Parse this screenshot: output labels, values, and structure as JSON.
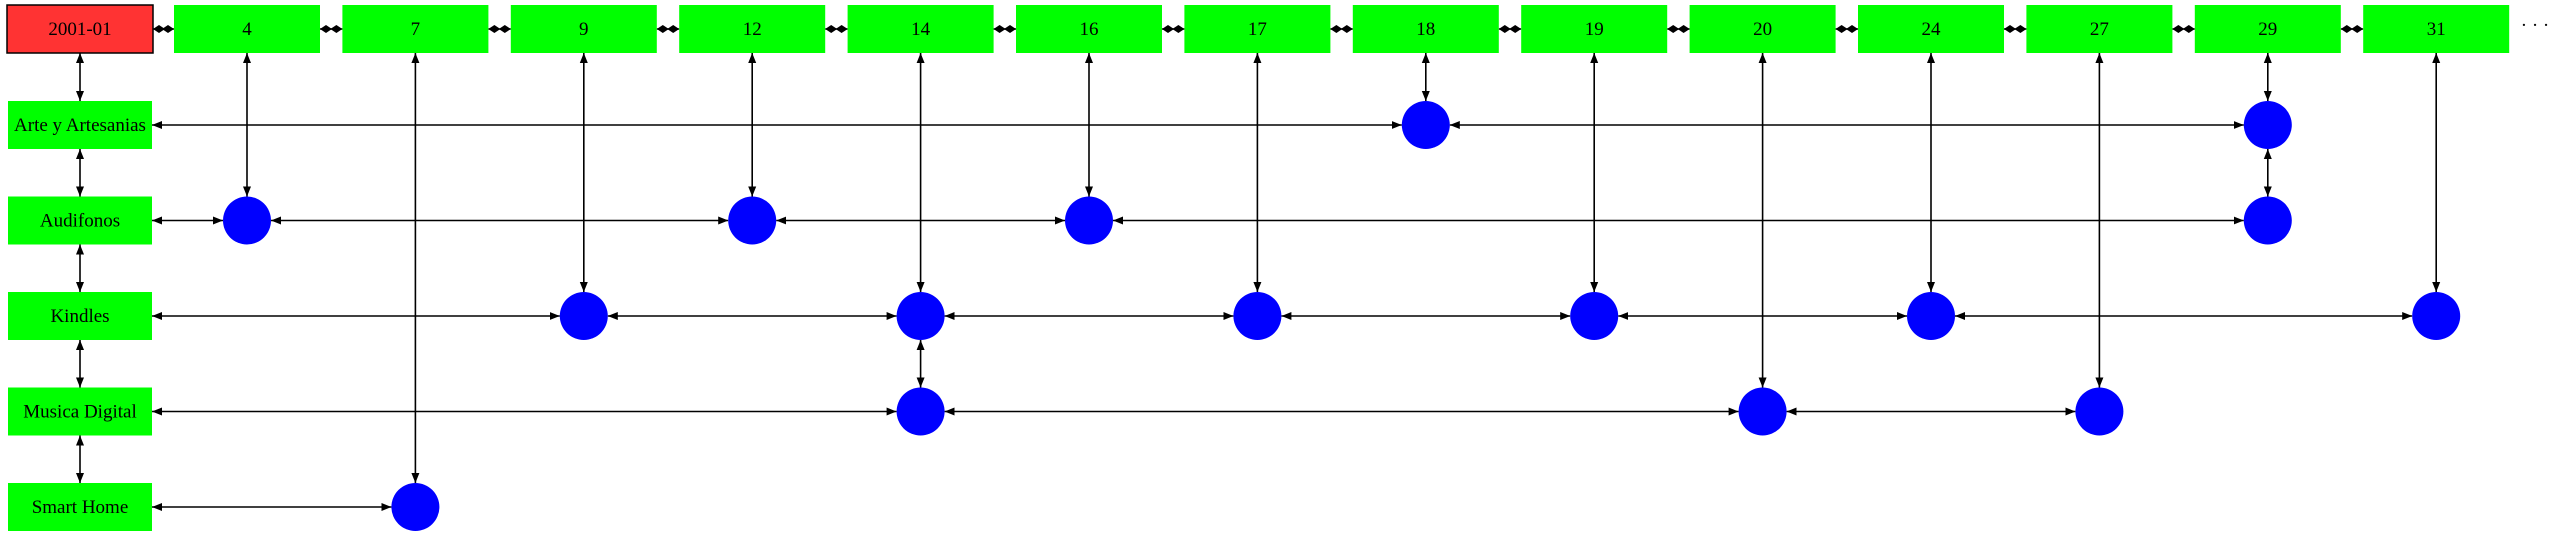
{
  "diagram": {
    "start_label": "2001-01",
    "days": [
      "4",
      "7",
      "9",
      "12",
      "14",
      "16",
      "17",
      "18",
      "19",
      "20",
      "24",
      "27",
      "29",
      "31"
    ],
    "categories": [
      "Arte y Artesanias",
      "Audifonos",
      "Kindles",
      "Musica Digital",
      "Smart Home"
    ],
    "events": [
      {
        "day": "4",
        "category": "Audifonos"
      },
      {
        "day": "7",
        "category": "Smart Home"
      },
      {
        "day": "9",
        "category": "Kindles"
      },
      {
        "day": "12",
        "category": "Audifonos"
      },
      {
        "day": "14",
        "category": "Kindles"
      },
      {
        "day": "14",
        "category": "Musica Digital"
      },
      {
        "day": "16",
        "category": "Audifonos"
      },
      {
        "day": "17",
        "category": "Kindles"
      },
      {
        "day": "18",
        "category": "Arte y Artesanias"
      },
      {
        "day": "19",
        "category": "Kindles"
      },
      {
        "day": "20",
        "category": "Musica Digital"
      },
      {
        "day": "24",
        "category": "Kindles"
      },
      {
        "day": "27",
        "category": "Musica Digital"
      },
      {
        "day": "29",
        "category": "Arte y Artesanias"
      },
      {
        "day": "29",
        "category": "Audifonos"
      },
      {
        "day": "31",
        "category": "Kindles"
      }
    ],
    "continuation": "· · ·",
    "colors": {
      "start_fill": "#ff3333",
      "node_fill": "#00ff00",
      "event_fill": "#0000ff",
      "edge": "#000000"
    }
  }
}
